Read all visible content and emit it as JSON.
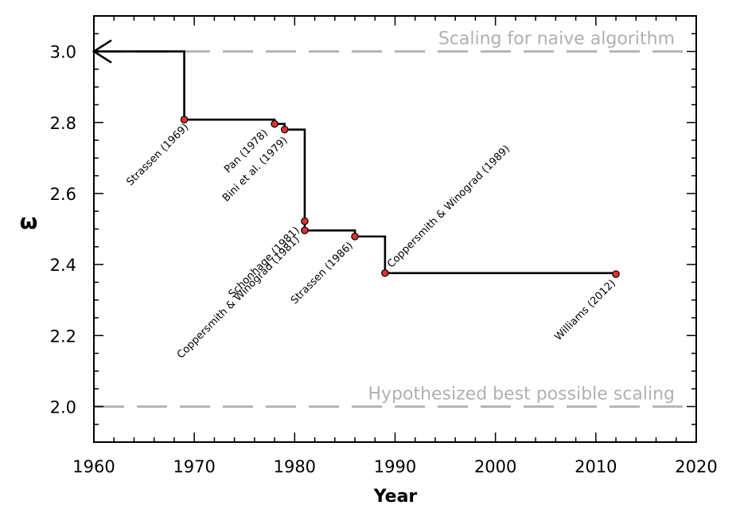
{
  "chart_data": {
    "type": "line",
    "title": "",
    "xlabel": "Year",
    "ylabel": "ω",
    "xlim": [
      1960,
      2020
    ],
    "ylim": [
      1.9,
      3.1
    ],
    "x_ticks": [
      1960,
      1970,
      1980,
      1990,
      2000,
      2010,
      2020
    ],
    "y_ticks": [
      "2.0",
      "2.2",
      "2.4",
      "2.6",
      "2.8",
      "3.0"
    ],
    "grid": false,
    "colors": {
      "step_line": "#000000",
      "marker": "#e03030",
      "reference": "#b4b4b4"
    },
    "reference_lines": [
      {
        "y": 3.0,
        "label": "Scaling for naive algorithm"
      },
      {
        "y": 2.0,
        "label": "Hypothesized best possible scaling"
      }
    ],
    "step_series": {
      "start": {
        "x": 1960,
        "y": 3.0
      },
      "end_x": 2012
    },
    "points": [
      {
        "x": 1969,
        "y": 2.808,
        "label": "Strassen (1969)"
      },
      {
        "x": 1978,
        "y": 2.796,
        "label": "Pan (1978)"
      },
      {
        "x": 1979,
        "y": 2.78,
        "label": "Bini et al. (1979)"
      },
      {
        "x": 1981,
        "y": 2.522,
        "label": "Schonhage (1981)"
      },
      {
        "x": 1981,
        "y": 2.496,
        "label": "Coppersmith & Winograd (1981)"
      },
      {
        "x": 1986,
        "y": 2.479,
        "label": "Strassen (1986)"
      },
      {
        "x": 1989,
        "y": 2.376,
        "label": "Coppersmith & Winograd (1989)"
      },
      {
        "x": 2012,
        "y": 2.373,
        "label": "Williams (2012)"
      }
    ]
  }
}
